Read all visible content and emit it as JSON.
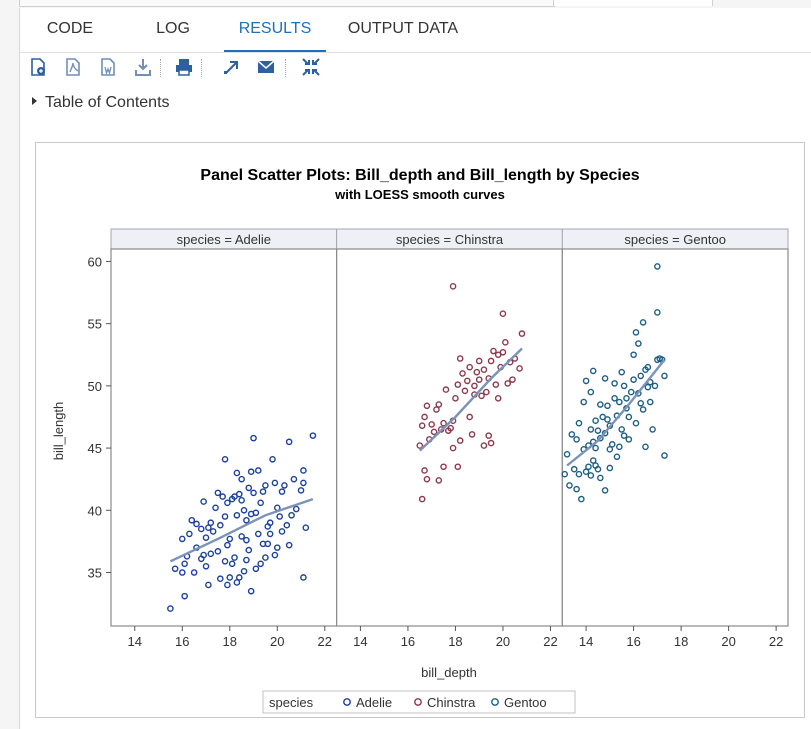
{
  "tabs": [
    {
      "label": "CODE",
      "active": false
    },
    {
      "label": "LOG",
      "active": false
    },
    {
      "label": "RESULTS",
      "active": true
    },
    {
      "label": "OUTPUT DATA",
      "active": false
    }
  ],
  "toolbar": {
    "icons": [
      "html-report-icon",
      "pdf-report-icon",
      "word-report-icon",
      "download-icon",
      "print-icon",
      "open-new-window-icon",
      "email-icon",
      "collapse-icon"
    ]
  },
  "toc": {
    "label": "Table of Contents"
  },
  "colors": {
    "accent": "#1f6fb5",
    "adelie": "#1b3f9c",
    "chinstra": "#8b3a4a",
    "gentoo": "#1f5d83",
    "loess": "#7b93b6"
  },
  "chart_data": {
    "type": "scatter",
    "title": "Panel Scatter Plots: Bill_depth and Bill_length by Species",
    "subtitle": "with LOESS smooth curves",
    "xlabel": "bill_depth",
    "ylabel": "bill_length",
    "xlim": [
      13,
      22.5
    ],
    "ylim": [
      30.7,
      61
    ],
    "xticks": [
      14,
      16,
      18,
      20,
      22
    ],
    "yticks": [
      35,
      40,
      45,
      50,
      55,
      60
    ],
    "legend": {
      "title": "species",
      "position": "bottom",
      "entries": [
        "Adelie",
        "Chinstra",
        "Gentoo"
      ]
    },
    "panels": [
      {
        "label": "species = Adelie",
        "series": "Adelie",
        "points": [
          [
            15.5,
            32.1
          ],
          [
            16.1,
            33.1
          ],
          [
            15.7,
            35.3
          ],
          [
            16.0,
            35.0
          ],
          [
            16.1,
            35.7
          ],
          [
            16.5,
            35.0
          ],
          [
            16.8,
            36.1
          ],
          [
            17.0,
            35.5
          ],
          [
            17.2,
            36.5
          ],
          [
            17.6,
            34.5
          ],
          [
            17.8,
            35.9
          ],
          [
            17.9,
            34.0
          ],
          [
            18.0,
            34.6
          ],
          [
            18.1,
            35.7
          ],
          [
            18.3,
            34.2
          ],
          [
            18.4,
            34.6
          ],
          [
            18.6,
            35.1
          ],
          [
            18.7,
            36.0
          ],
          [
            18.9,
            33.5
          ],
          [
            19.1,
            35.3
          ],
          [
            19.3,
            35.7
          ],
          [
            19.5,
            36.2
          ],
          [
            19.6,
            37.3
          ],
          [
            19.7,
            38.1
          ],
          [
            20.0,
            37.0
          ],
          [
            20.2,
            38.3
          ],
          [
            20.5,
            37.2
          ],
          [
            21.1,
            34.6
          ],
          [
            16.0,
            37.7
          ],
          [
            16.3,
            38.1
          ],
          [
            16.6,
            37.0
          ],
          [
            16.9,
            36.4
          ],
          [
            17.0,
            37.8
          ],
          [
            17.1,
            38.6
          ],
          [
            17.2,
            39.0
          ],
          [
            17.4,
            40.2
          ],
          [
            17.5,
            41.4
          ],
          [
            17.8,
            39.5
          ],
          [
            17.9,
            40.6
          ],
          [
            18.1,
            40.9
          ],
          [
            18.2,
            41.1
          ],
          [
            18.3,
            39.6
          ],
          [
            18.4,
            41.3
          ],
          [
            18.5,
            42.5
          ],
          [
            18.6,
            40.0
          ],
          [
            18.7,
            39.2
          ],
          [
            18.8,
            41.8
          ],
          [
            18.9,
            43.1
          ],
          [
            19.0,
            41.4
          ],
          [
            19.1,
            39.8
          ],
          [
            19.2,
            43.2
          ],
          [
            19.3,
            40.6
          ],
          [
            19.4,
            41.5
          ],
          [
            19.5,
            42.0
          ],
          [
            19.6,
            38.7
          ],
          [
            19.7,
            39.0
          ],
          [
            19.9,
            42.2
          ],
          [
            20.0,
            40.2
          ],
          [
            20.2,
            41.5
          ],
          [
            20.3,
            42.0
          ],
          [
            20.4,
            38.8
          ],
          [
            20.6,
            39.6
          ],
          [
            20.7,
            42.5
          ],
          [
            20.8,
            40.1
          ],
          [
            21.0,
            41.6
          ],
          [
            21.1,
            42.2
          ],
          [
            21.2,
            38.6
          ],
          [
            21.1,
            43.2
          ],
          [
            21.5,
            46.0
          ],
          [
            20.5,
            45.5
          ],
          [
            19.0,
            45.8
          ],
          [
            17.8,
            44.1
          ],
          [
            18.3,
            43.0
          ],
          [
            19.8,
            44.1
          ],
          [
            17.3,
            38.3
          ],
          [
            16.9,
            40.7
          ],
          [
            17.6,
            38.8
          ],
          [
            18.0,
            37.7
          ],
          [
            18.7,
            37.6
          ],
          [
            19.4,
            37.3
          ],
          [
            16.4,
            39.2
          ],
          [
            16.8,
            38.5
          ],
          [
            17.5,
            36.7
          ],
          [
            18.2,
            36.2
          ],
          [
            18.8,
            36.8
          ],
          [
            19.9,
            36.4
          ],
          [
            17.1,
            34.0
          ],
          [
            16.2,
            36.3
          ],
          [
            18.5,
            37.9
          ],
          [
            19.2,
            38.1
          ],
          [
            17.7,
            41.1
          ],
          [
            18.9,
            39.7
          ],
          [
            17.9,
            37.2
          ],
          [
            18.5,
            40.8
          ],
          [
            20.1,
            39.5
          ],
          [
            16.6,
            38.9
          ]
        ]
      },
      {
        "label": "species = Chinstra",
        "series": "Chinstra",
        "points": [
          [
            16.6,
            40.9
          ],
          [
            16.7,
            43.2
          ],
          [
            16.8,
            42.5
          ],
          [
            17.3,
            42.4
          ],
          [
            17.5,
            43.5
          ],
          [
            17.9,
            45.0
          ],
          [
            18.1,
            43.5
          ],
          [
            16.5,
            45.2
          ],
          [
            16.6,
            46.8
          ],
          [
            16.7,
            47.5
          ],
          [
            16.9,
            45.7
          ],
          [
            17.1,
            46.3
          ],
          [
            17.3,
            48.5
          ],
          [
            17.5,
            47.0
          ],
          [
            17.7,
            46.4
          ],
          [
            17.8,
            46.6
          ],
          [
            17.9,
            47.2
          ],
          [
            18.0,
            49.0
          ],
          [
            18.1,
            50.1
          ],
          [
            18.2,
            45.6
          ],
          [
            18.4,
            49.6
          ],
          [
            18.5,
            50.4
          ],
          [
            18.6,
            51.5
          ],
          [
            18.7,
            46.1
          ],
          [
            18.8,
            50.0
          ],
          [
            18.9,
            51.1
          ],
          [
            19.0,
            50.5
          ],
          [
            19.1,
            49.2
          ],
          [
            19.2,
            51.3
          ],
          [
            19.3,
            49.5
          ],
          [
            19.4,
            50.6
          ],
          [
            19.5,
            52.0
          ],
          [
            19.6,
            52.8
          ],
          [
            19.7,
            50.1
          ],
          [
            19.8,
            49.0
          ],
          [
            19.9,
            51.5
          ],
          [
            20.0,
            52.7
          ],
          [
            20.1,
            53.5
          ],
          [
            20.2,
            50.2
          ],
          [
            20.3,
            51.9
          ],
          [
            20.5,
            52.2
          ],
          [
            20.7,
            51.4
          ],
          [
            20.8,
            54.2
          ],
          [
            20.0,
            55.8
          ],
          [
            17.9,
            58.0
          ],
          [
            18.3,
            51.0
          ],
          [
            18.6,
            47.5
          ],
          [
            19.2,
            45.2
          ],
          [
            19.4,
            46.0
          ],
          [
            19.5,
            45.4
          ],
          [
            17.0,
            46.9
          ],
          [
            17.4,
            46.5
          ],
          [
            17.6,
            49.7
          ],
          [
            18.8,
            49.3
          ],
          [
            19.0,
            52.0
          ],
          [
            20.4,
            50.5
          ],
          [
            17.2,
            48.1
          ],
          [
            18.2,
            52.2
          ],
          [
            19.8,
            52.5
          ],
          [
            16.8,
            48.4
          ]
        ]
      },
      {
        "label": "species = Gentoo",
        "series": "Gentoo",
        "points": [
          [
            13.1,
            42.9
          ],
          [
            13.3,
            42.0
          ],
          [
            13.5,
            43.3
          ],
          [
            13.6,
            41.7
          ],
          [
            13.7,
            42.9
          ],
          [
            13.8,
            40.9
          ],
          [
            14.0,
            43.1
          ],
          [
            14.1,
            43.5
          ],
          [
            14.2,
            42.8
          ],
          [
            14.3,
            44.0
          ],
          [
            14.4,
            45.0
          ],
          [
            14.5,
            43.3
          ],
          [
            14.6,
            42.6
          ],
          [
            14.8,
            41.6
          ],
          [
            15.0,
            43.4
          ],
          [
            14.1,
            45.2
          ],
          [
            14.2,
            46.5
          ],
          [
            14.3,
            45.5
          ],
          [
            14.4,
            47.2
          ],
          [
            14.5,
            46.4
          ],
          [
            14.6,
            45.8
          ],
          [
            14.7,
            47.5
          ],
          [
            14.8,
            46.2
          ],
          [
            14.9,
            48.4
          ],
          [
            15.0,
            46.8
          ],
          [
            15.1,
            45.3
          ],
          [
            15.2,
            49.0
          ],
          [
            15.3,
            47.6
          ],
          [
            15.4,
            48.7
          ],
          [
            15.5,
            46.5
          ],
          [
            15.6,
            50.0
          ],
          [
            15.7,
            48.2
          ],
          [
            15.8,
            45.7
          ],
          [
            15.9,
            49.5
          ],
          [
            16.0,
            50.5
          ],
          [
            16.1,
            47.0
          ],
          [
            16.2,
            49.4
          ],
          [
            16.3,
            50.8
          ],
          [
            16.4,
            48.1
          ],
          [
            16.5,
            51.3
          ],
          [
            16.6,
            49.9
          ],
          [
            16.7,
            50.3
          ],
          [
            16.8,
            46.5
          ],
          [
            16.9,
            50.0
          ],
          [
            17.0,
            52.1
          ],
          [
            17.1,
            52.2
          ],
          [
            17.3,
            44.4
          ],
          [
            17.3,
            50.8
          ],
          [
            17.0,
            55.9
          ],
          [
            17.0,
            59.6
          ],
          [
            16.1,
            54.3
          ],
          [
            16.2,
            53.4
          ],
          [
            16.0,
            52.5
          ],
          [
            16.4,
            55.1
          ],
          [
            16.6,
            51.5
          ],
          [
            14.0,
            50.4
          ],
          [
            14.2,
            49.5
          ],
          [
            14.3,
            51.2
          ],
          [
            13.9,
            48.7
          ],
          [
            13.7,
            47.0
          ],
          [
            13.4,
            46.1
          ],
          [
            13.2,
            44.5
          ],
          [
            15.5,
            51.1
          ],
          [
            15.2,
            50.2
          ],
          [
            15.8,
            47.5
          ],
          [
            16.5,
            45.1
          ],
          [
            14.6,
            48.5
          ],
          [
            15.0,
            44.9
          ],
          [
            14.4,
            43.6
          ],
          [
            13.9,
            44.9
          ],
          [
            15.3,
            44.3
          ],
          [
            15.6,
            46.0
          ],
          [
            16.3,
            48.6
          ],
          [
            13.6,
            45.7
          ],
          [
            14.8,
            50.6
          ],
          [
            15.4,
            45.1
          ],
          [
            14.9,
            47.3
          ],
          [
            16.7,
            48.7
          ],
          [
            17.2,
            52.1
          ],
          [
            15.7,
            49.0
          ]
        ]
      }
    ],
    "loess": [
      {
        "series": "Adelie",
        "points": [
          [
            15.5,
            35.9
          ],
          [
            17.5,
            37.7
          ],
          [
            19.5,
            39.6
          ],
          [
            21.5,
            40.9
          ]
        ]
      },
      {
        "series": "Chinstra",
        "points": [
          [
            16.5,
            44.8
          ],
          [
            18.0,
            47.5
          ],
          [
            19.5,
            50.6
          ],
          [
            20.8,
            53.0
          ]
        ]
      },
      {
        "series": "Gentoo",
        "points": [
          [
            13.2,
            43.6
          ],
          [
            14.5,
            45.6
          ],
          [
            15.8,
            48.5
          ],
          [
            17.3,
            52.1
          ]
        ]
      }
    ]
  }
}
